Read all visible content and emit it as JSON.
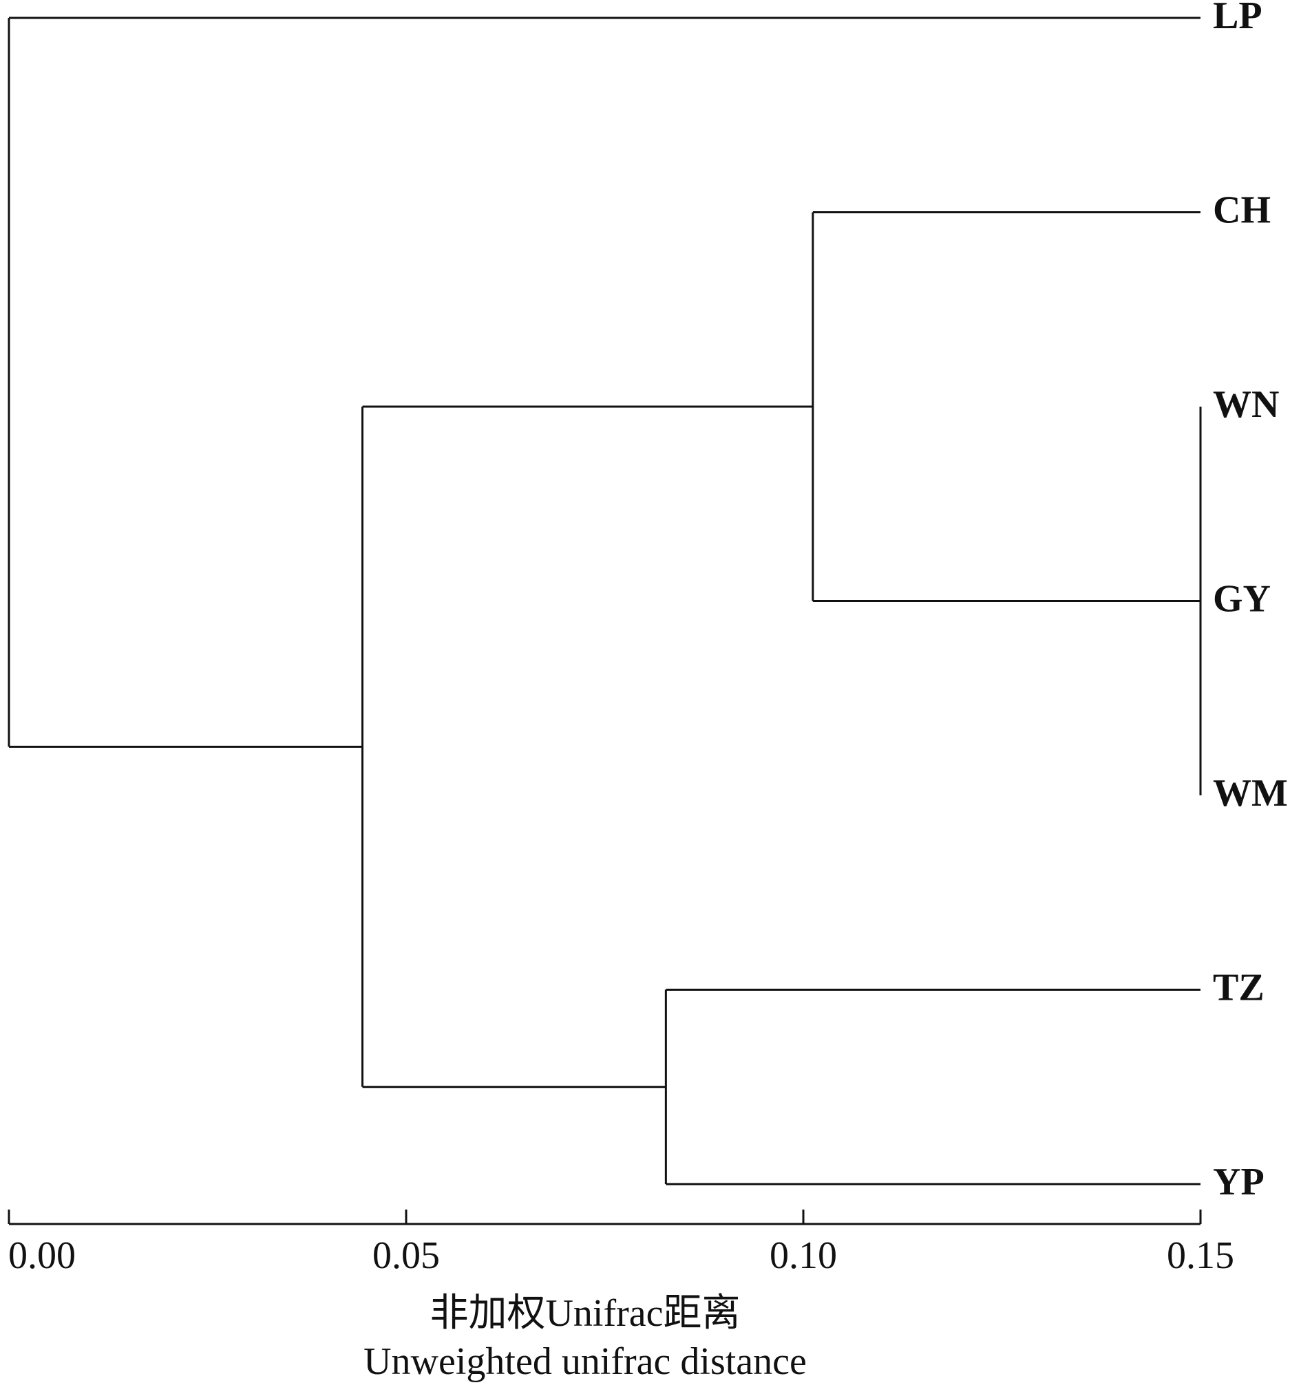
{
  "chart_data": {
    "type": "dendrogram",
    "tree": {
      "height": 0,
      "children": [
        {
          "label": "LP"
        },
        {
          "height": 0.0445,
          "children": [
            {
              "height": 0.1012,
              "children": [
                {
                  "label": "CH"
                },
                {
                  "height": 0.15,
                  "children": [
                    {
                      "label": "WN"
                    },
                    {
                      "label": "GY"
                    },
                    {
                      "label": "WM"
                    }
                  ]
                }
              ]
            },
            {
              "height": 0.0827,
              "children": [
                {
                  "label": "TZ"
                },
                {
                  "label": "YP"
                }
              ]
            }
          ]
        }
      ]
    },
    "xlim": [
      0,
      0.15
    ],
    "xticks": [
      {
        "value": 0,
        "label": "0.00"
      },
      0.05,
      {
        "value": 0.1,
        "label": "0.10"
      },
      0.15
    ],
    "xlabel": [
      "非加权Unifrac距离",
      "Unweighted unifrac distance"
    ],
    "color": "#111111"
  }
}
